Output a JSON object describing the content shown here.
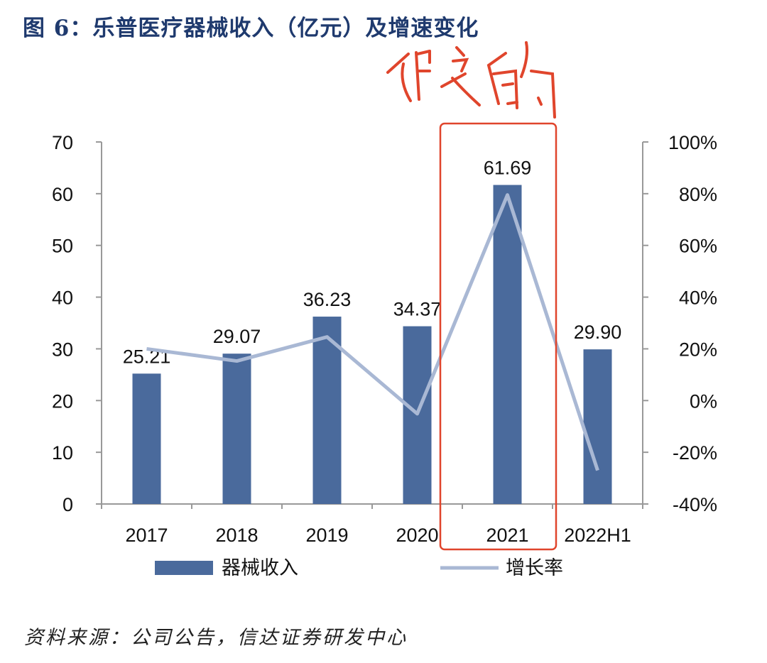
{
  "title": "图 6：乐普医疗器械收入（亿元）及增速变化",
  "source": "资料来源：公司公告，信达证券研发中心",
  "annotation": {
    "handwritten_text": "假的",
    "color": "#e0452c",
    "highlighted_category": "2021"
  },
  "chart_data": {
    "type": "bar+line",
    "categories": [
      "2017",
      "2018",
      "2019",
      "2020",
      "2021",
      "2022H1"
    ],
    "series": [
      {
        "name": "器械收入",
        "type": "bar",
        "axis": "left",
        "color": "#4a6a9c",
        "values": [
          25.21,
          29.07,
          36.23,
          34.37,
          61.69,
          29.9
        ],
        "labels": [
          "25.21",
          "29.07",
          "36.23",
          "34.37",
          "61.69",
          "29.90"
        ]
      },
      {
        "name": "增长率",
        "type": "line",
        "axis": "right",
        "color": "#a9b8d4",
        "values": [
          20,
          15.3,
          24.6,
          -5.1,
          79.5,
          -27
        ]
      }
    ],
    "left_axis": {
      "range": [
        0,
        70
      ],
      "ticks": [
        "0",
        "10",
        "20",
        "30",
        "40",
        "50",
        "60",
        "70"
      ]
    },
    "right_axis": {
      "range": [
        -40,
        100
      ],
      "unit": "%",
      "ticks": [
        "-40%",
        "-20%",
        "0%",
        "20%",
        "40%",
        "60%",
        "80%",
        "100%"
      ]
    },
    "grid": false,
    "legend": "bottom"
  }
}
